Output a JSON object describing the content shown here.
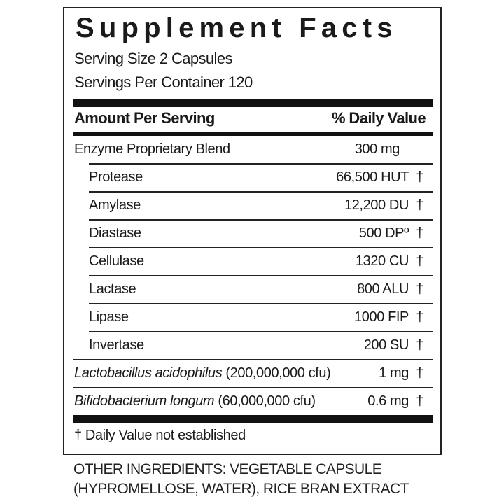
{
  "title": "Supplement Facts",
  "serving_size": "Serving Size 2 Capsules",
  "servings_per_container": "Servings Per Container 120",
  "header": {
    "amount": "Amount Per Serving",
    "daily_value": "% Daily Value"
  },
  "blend": {
    "name": "Enzyme Proprietary Blend",
    "amount": "300 mg"
  },
  "enzymes": [
    {
      "name": "Protease",
      "amount": "66,500 HUT",
      "dv": "†"
    },
    {
      "name": "Amylase",
      "amount": "12,200 DU",
      "dv": "†"
    },
    {
      "name": "Diastase",
      "amount": "500 DPº",
      "dv": "†"
    },
    {
      "name": "Cellulase",
      "amount": "1320 CU",
      "dv": "†"
    },
    {
      "name": "Lactase",
      "amount": "800 ALU",
      "dv": "†"
    },
    {
      "name": "Lipase",
      "amount": "1000 FIP",
      "dv": "†"
    },
    {
      "name": "Invertase",
      "amount": "200 SU",
      "dv": "†"
    }
  ],
  "probiotics": [
    {
      "name": "Lactobacillus acidophilus",
      "cfu": " (200,000,000 cfu)",
      "amount": "1 mg",
      "dv": "†"
    },
    {
      "name": "Bifidobacterium longum",
      "cfu": " (60,000,000 cfu)",
      "amount": "0.6 mg",
      "dv": "†"
    }
  ],
  "footnote": "† Daily Value not established",
  "other_ingredients": {
    "line1": "OTHER INGREDIENTS: VEGETABLE CAPSULE",
    "line2": "(HYPROMELLOSE, WATER), RICE BRAN EXTRACT"
  }
}
